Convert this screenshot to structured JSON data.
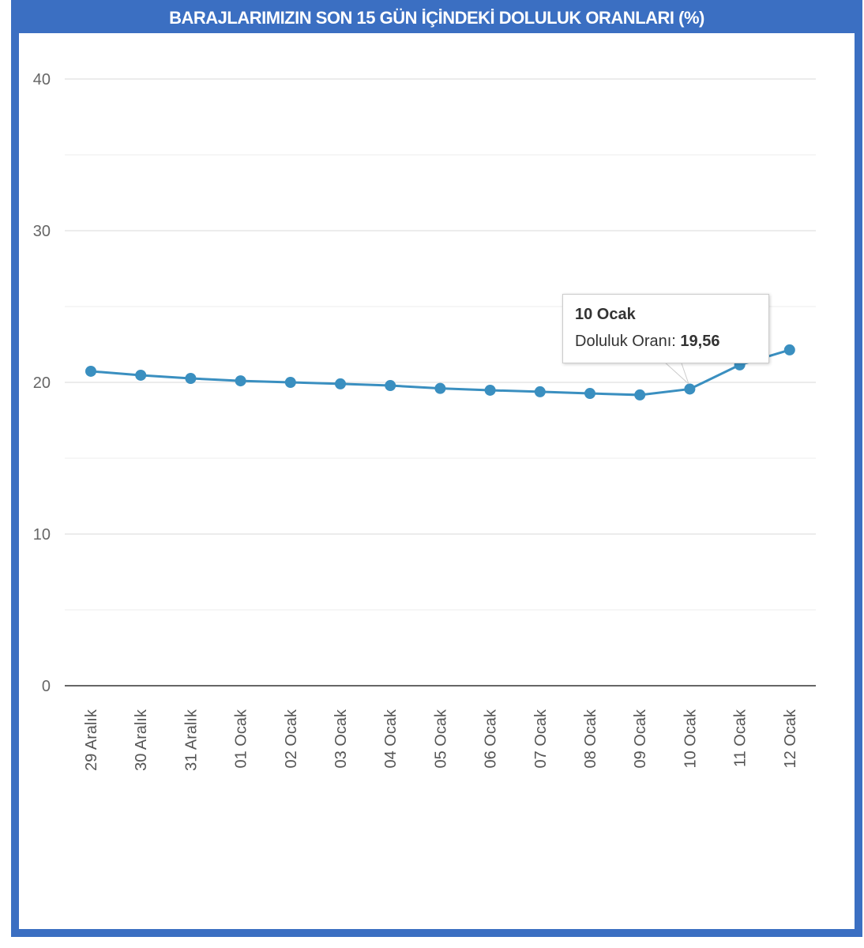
{
  "title": "BARAJLARIMIZIN SON 15 GÜN İÇİNDEKİ DOLULUK ORANLARI (%)",
  "chart_data": {
    "type": "line",
    "title": "BARAJLARIMIZIN SON 15 GÜN İÇİNDEKİ DOLULUK ORANLARI (%)",
    "categories": [
      "29 Aralık",
      "30 Aralık",
      "31 Aralık",
      "01 Ocak",
      "02 Ocak",
      "03 Ocak",
      "04 Ocak",
      "05 Ocak",
      "06 Ocak",
      "07 Ocak",
      "08 Ocak",
      "09 Ocak",
      "10 Ocak",
      "11 Ocak",
      "12 Ocak"
    ],
    "series": [
      {
        "name": "Doluluk Oranı",
        "values": [
          20.73,
          20.47,
          20.26,
          20.1,
          20.0,
          19.9,
          19.79,
          19.6,
          19.48,
          19.38,
          19.27,
          19.17,
          19.56,
          21.15,
          22.14
        ],
        "color": "#3a8fc0"
      }
    ],
    "yticks": [
      0,
      10,
      20,
      30,
      40
    ],
    "ylim": [
      0,
      40
    ],
    "grid": true,
    "xlabel": "",
    "ylabel": ""
  },
  "tooltip": {
    "title": "10 Ocak",
    "label": "Doluluk Oranı:",
    "value": "19,56"
  },
  "colors": {
    "frame": "#3b6fc2",
    "line": "#3a8fc0"
  }
}
